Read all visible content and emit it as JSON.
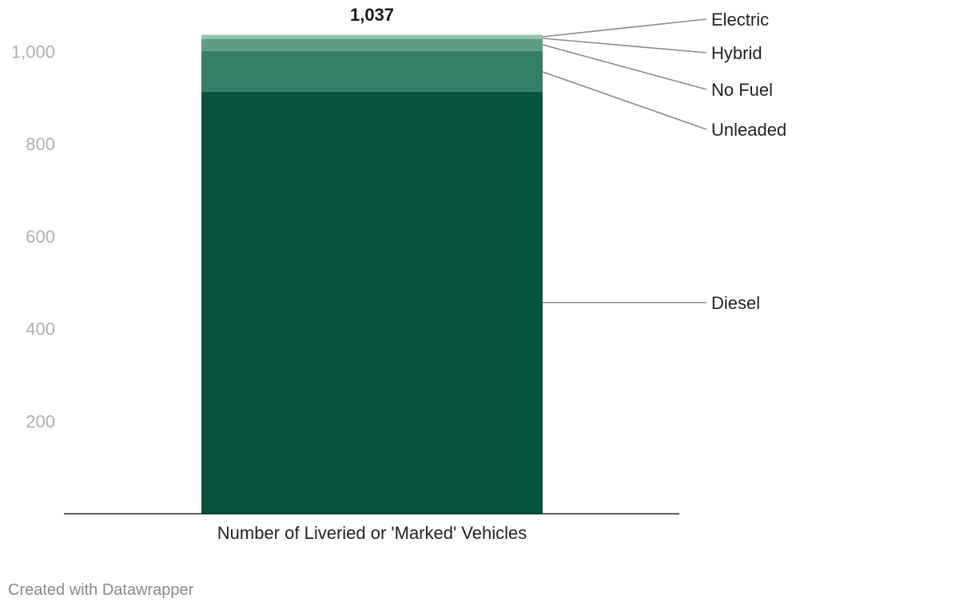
{
  "chart_data": {
    "type": "bar",
    "stacked": true,
    "categories": [
      "Number of Liveried or 'Marked' Vehicles"
    ],
    "series": [
      {
        "name": "Diesel",
        "values": [
          913
        ],
        "color": "#04543f"
      },
      {
        "name": "Unleaded",
        "values": [
          88
        ],
        "color": "#347d66"
      },
      {
        "name": "No Fuel",
        "values": [
          26
        ],
        "color": "#5f9e85"
      },
      {
        "name": "Hybrid",
        "values": [
          8
        ],
        "color": "#8cc4aa"
      },
      {
        "name": "Electric",
        "values": [
          2
        ],
        "color": "#b6e6d0"
      }
    ],
    "total_label": "1,037",
    "ylim": [
      0,
      1050
    ],
    "yticks": [
      200,
      400,
      600,
      800,
      1000
    ],
    "ytick_labels": [
      "200",
      "400",
      "600",
      "800",
      "1,000"
    ],
    "grid": false,
    "legend": "direct labels right of bar",
    "title": "",
    "xlabel": "",
    "ylabel": ""
  },
  "footer": "Created with Datawrapper"
}
